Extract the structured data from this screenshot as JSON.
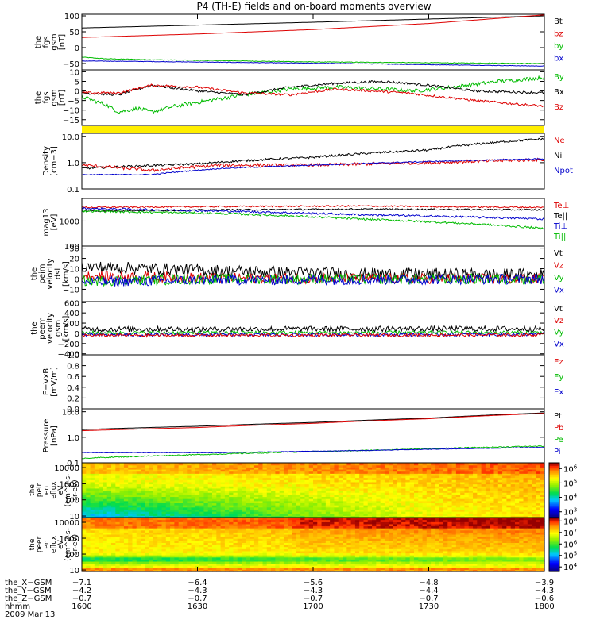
{
  "title": "P4 (TH-E) fields and on-board moments overview",
  "chart_data": {
    "type": "line",
    "time_axis": {
      "ticks": [
        "1600",
        "1630",
        "1700",
        "1730",
        "1800"
      ],
      "range": [
        "16:00",
        "18:00"
      ]
    },
    "panels": [
      {
        "ylabel": [
          "the",
          "fgs",
          "gsm",
          "[nT]"
        ],
        "scale": "linear",
        "ylim": [
          -70,
          105
        ],
        "ticks": [
          {
            "v": 100,
            "t": "100"
          },
          {
            "v": 50,
            "t": "50"
          },
          {
            "v": 0,
            "t": "0"
          },
          {
            "v": -50,
            "t": "−50"
          }
        ],
        "legend": [
          {
            "name": "Bt",
            "color": "#000000"
          },
          {
            "name": "bz",
            "color": "#dd0000"
          },
          {
            "name": "by",
            "color": "#00bb00"
          },
          {
            "name": "bx",
            "color": "#0000cc"
          }
        ],
        "series": [
          {
            "name": "Bt",
            "color": "#000000",
            "noise": 0,
            "t": [
              0,
              0.25,
              0.5,
              0.75,
              1
            ],
            "v": [
              62,
              71,
              80,
              90,
              100
            ]
          },
          {
            "name": "bz",
            "color": "#dd0000",
            "noise": 0,
            "t": [
              0,
              0.25,
              0.5,
              0.75,
              1
            ],
            "v": [
              32,
              43,
              57,
              76,
              103
            ]
          },
          {
            "name": "by",
            "color": "#00bb00",
            "noise": 1,
            "t": [
              0,
              0.05,
              0.15,
              0.5,
              1
            ],
            "v": [
              -30,
              -35,
              -38,
              -45,
              -50
            ]
          },
          {
            "name": "bx",
            "color": "#0000cc",
            "noise": 0.8,
            "t": [
              0,
              0.1,
              0.5,
              1
            ],
            "v": [
              -42,
              -43,
              -49,
              -58
            ]
          }
        ]
      },
      {
        "ylabel": [
          "the",
          "fgs",
          "gsm",
          "[nT]"
        ],
        "scale": "linear",
        "ylim": [
          -18,
          11
        ],
        "ticks": [
          {
            "v": 10,
            "t": "10"
          },
          {
            "v": 5,
            "t": "5"
          },
          {
            "v": 0,
            "t": "0"
          },
          {
            "v": -5,
            "t": "−5"
          },
          {
            "v": -10,
            "t": "−10"
          },
          {
            "v": -15,
            "t": "−15"
          }
        ],
        "legend": [
          {
            "name": "By",
            "color": "#00bb00"
          },
          {
            "name": "Bx",
            "color": "#000000"
          },
          {
            "name": "Bz",
            "color": "#dd0000"
          }
        ],
        "series": [
          {
            "name": "By",
            "color": "#00bb00",
            "noise": 1,
            "t": [
              0,
              0.05,
              0.08,
              0.12,
              0.15,
              0.2,
              0.25,
              0.3,
              0.35,
              0.45,
              0.55,
              0.65,
              0.72,
              0.8,
              0.9,
              1
            ],
            "v": [
              -3,
              -7,
              -11,
              -9,
              -11,
              -8,
              -6,
              -4,
              -2,
              1,
              2,
              1,
              0,
              2,
              5,
              7
            ]
          },
          {
            "name": "Bx",
            "color": "#000000",
            "noise": 0.6,
            "t": [
              0,
              0.08,
              0.15,
              0.25,
              0.35,
              0.45,
              0.55,
              0.65,
              0.75,
              0.85,
              1
            ],
            "v": [
              -1,
              -2,
              3,
              0,
              -2,
              2,
              4,
              5,
              3,
              0,
              -1
            ]
          },
          {
            "name": "Bz",
            "color": "#dd0000",
            "noise": 0.6,
            "t": [
              0,
              0.08,
              0.15,
              0.25,
              0.35,
              0.45,
              0.55,
              0.7,
              0.85,
              1
            ],
            "v": [
              -1,
              -1,
              3,
              2,
              -1,
              -2,
              1,
              -1,
              -5,
              -8
            ]
          }
        ]
      },
      {
        "ylabel": [
          "Density",
          "[cm−3]"
        ],
        "scale": "log",
        "ylim": [
          0.1,
          13
        ],
        "ticks": [
          {
            "v": 10,
            "t": "10.0"
          },
          {
            "v": 1,
            "t": "1.0"
          },
          {
            "v": 0.1,
            "t": "0.1"
          }
        ],
        "legend": [
          {
            "name": "Ne",
            "color": "#dd0000"
          },
          {
            "name": "Ni",
            "color": "#000000"
          },
          {
            "name": "Npot",
            "color": "#0000cc"
          }
        ],
        "series": [
          {
            "name": "Ni",
            "color": "#000000",
            "noise": 0.04,
            "t": [
              0,
              0.25,
              0.5,
              0.75,
              1
            ],
            "v": [
              0.6,
              0.9,
              1.6,
              3.0,
              8.0
            ]
          },
          {
            "name": "Ne",
            "color": "#dd0000",
            "noise": 0.06,
            "t": [
              0,
              0.15,
              0.3,
              0.5,
              0.75,
              1
            ],
            "v": [
              0.8,
              0.5,
              0.8,
              0.8,
              1.0,
              1.3
            ]
          },
          {
            "name": "Npot",
            "color": "#0000cc",
            "noise": 0.02,
            "t": [
              0,
              0.15,
              0.3,
              0.5,
              0.75,
              1
            ],
            "v": [
              0.35,
              0.35,
              0.6,
              0.8,
              1.1,
              1.4
            ]
          }
        ]
      },
      {
        "ylabel": [
          "mag13",
          "[eV]"
        ],
        "scale": "log",
        "ylim": [
          100,
          8000
        ],
        "ticks": [
          {
            "v": 1000,
            "t": "1000"
          },
          {
            "v": 100,
            "t": "100"
          }
        ],
        "legend": [
          {
            "name": "Te⊥",
            "color": "#dd0000"
          },
          {
            "name": "Te||",
            "color": "#000000"
          },
          {
            "name": "Ti⊥",
            "color": "#0000cc"
          },
          {
            "name": "Ti||",
            "color": "#00bb00"
          }
        ],
        "series": [
          {
            "name": "Te⊥",
            "color": "#dd0000",
            "noise": 0.03,
            "t": [
              0,
              0.3,
              0.6,
              1
            ],
            "v": [
              3500,
              3800,
              4000,
              3500
            ]
          },
          {
            "name": "Te||",
            "color": "#000000",
            "noise": 0.03,
            "t": [
              0,
              0.3,
              0.6,
              1
            ],
            "v": [
              2500,
              2800,
              3000,
              2800
            ]
          },
          {
            "name": "Ti⊥",
            "color": "#0000cc",
            "noise": 0.04,
            "t": [
              0,
              0.3,
              0.6,
              1
            ],
            "v": [
              3200,
              2500,
              1800,
              1200
            ]
          },
          {
            "name": "Ti||",
            "color": "#00bb00",
            "noise": 0.04,
            "t": [
              0,
              0.3,
              0.6,
              1
            ],
            "v": [
              2500,
              2000,
              1200,
              500
            ]
          }
        ]
      },
      {
        "ylabel": [
          "the",
          "peim",
          "velocity",
          "dsl",
          "[km/s]"
        ],
        "scale": "linear",
        "ylim": [
          -22,
          32
        ],
        "ticks": [
          {
            "v": 30,
            "t": "30"
          },
          {
            "v": 20,
            "t": "20"
          },
          {
            "v": 10,
            "t": "10"
          },
          {
            "v": 0,
            "t": "0"
          },
          {
            "v": -10,
            "t": "−10"
          }
        ],
        "legend": [
          {
            "name": "Vt",
            "color": "#000000"
          },
          {
            "name": "Vz",
            "color": "#dd0000"
          },
          {
            "name": "Vy",
            "color": "#00bb00"
          },
          {
            "name": "Vx",
            "color": "#0000cc"
          }
        ],
        "series": [
          {
            "name": "Vt",
            "color": "#000000",
            "noise": 6,
            "t": [
              0,
              0.3,
              0.6,
              1
            ],
            "v": [
              12,
              8,
              5,
              4
            ]
          },
          {
            "name": "Vz",
            "color": "#dd0000",
            "noise": 5,
            "t": [
              0,
              0.3,
              1
            ],
            "v": [
              3,
              1,
              0
            ]
          },
          {
            "name": "Vy",
            "color": "#00bb00",
            "noise": 5,
            "t": [
              0,
              0.3,
              1
            ],
            "v": [
              -2,
              0,
              0
            ]
          },
          {
            "name": "Vx",
            "color": "#0000cc",
            "noise": 5,
            "t": [
              0,
              0.3,
              1
            ],
            "v": [
              -3,
              -1,
              0
            ]
          }
        ]
      },
      {
        "ylabel": [
          "the",
          "peem",
          "velocity",
          "gsm",
          "[km/s]"
        ],
        "scale": "linear",
        "ylim": [
          -420,
          620
        ],
        "ticks": [
          {
            "v": 600,
            "t": "600"
          },
          {
            "v": 400,
            "t": "400"
          },
          {
            "v": 200,
            "t": "200"
          },
          {
            "v": 0,
            "t": "0"
          },
          {
            "v": -200,
            "t": "−200"
          },
          {
            "v": -400,
            "t": "−400"
          }
        ],
        "legend": [
          {
            "name": "Vt",
            "color": "#000000"
          },
          {
            "name": "Vz",
            "color": "#dd0000"
          },
          {
            "name": "Vy",
            "color": "#00bb00"
          },
          {
            "name": "Vx",
            "color": "#0000cc"
          }
        ],
        "series": [
          {
            "name": "Vt",
            "color": "#000000",
            "noise": 55,
            "t": [
              0,
              1
            ],
            "v": [
              80,
              90
            ]
          },
          {
            "name": "Vy",
            "color": "#00bb00",
            "noise": 35,
            "t": [
              0,
              1
            ],
            "v": [
              10,
              15
            ]
          },
          {
            "name": "Vx",
            "color": "#0000cc",
            "noise": 35,
            "t": [
              0,
              1
            ],
            "v": [
              -30,
              -20
            ]
          },
          {
            "name": "Vz",
            "color": "#dd0000",
            "noise": 30,
            "t": [
              0,
              1
            ],
            "v": [
              -40,
              -30
            ]
          }
        ]
      },
      {
        "ylabel": [
          "E−VxB",
          "[mV/m]"
        ],
        "scale": "linear",
        "ylim": [
          0,
          1
        ],
        "ticks": [
          {
            "v": 1,
            "t": "1.0"
          },
          {
            "v": 0.8,
            "t": "0.8"
          },
          {
            "v": 0.6,
            "t": "0.6"
          },
          {
            "v": 0.4,
            "t": "0.4"
          },
          {
            "v": 0.2,
            "t": "0.2"
          },
          {
            "v": 0,
            "t": "0.0"
          }
        ],
        "legend": [
          {
            "name": "Ez",
            "color": "#dd0000"
          },
          {
            "name": "Ey",
            "color": "#00bb00"
          },
          {
            "name": "Ex",
            "color": "#0000cc"
          }
        ],
        "series": []
      },
      {
        "ylabel": [
          "Pressure",
          "[nPa]"
        ],
        "scale": "log",
        "ylim": [
          0.1,
          13
        ],
        "ticks": [
          {
            "v": 10,
            "t": "10.0"
          },
          {
            "v": 1,
            "t": "1.0"
          },
          {
            "v": 0.1,
            "t": "0.1"
          }
        ],
        "legend": [
          {
            "name": "Pt",
            "color": "#000000"
          },
          {
            "name": "Pb",
            "color": "#dd0000"
          },
          {
            "name": "Pe",
            "color": "#00bb00"
          },
          {
            "name": "Pi",
            "color": "#0000cc"
          }
        ],
        "series": [
          {
            "name": "Pt",
            "color": "#000000",
            "noise": 0,
            "t": [
              0,
              0.25,
              0.5,
              0.75,
              1
            ],
            "v": [
              2.0,
              2.7,
              3.8,
              5.6,
              9.0
            ]
          },
          {
            "name": "Pb",
            "color": "#dd0000",
            "noise": 0,
            "t": [
              0,
              0.25,
              0.5,
              0.75,
              1
            ],
            "v": [
              1.8,
              2.4,
              3.5,
              5.3,
              8.6
            ]
          },
          {
            "name": "Pe",
            "color": "#00bb00",
            "noise": 0.02,
            "t": [
              0,
              0.3,
              0.6,
              1
            ],
            "v": [
              0.15,
              0.22,
              0.3,
              0.45
            ]
          },
          {
            "name": "Pi",
            "color": "#0000cc",
            "noise": 0.01,
            "t": [
              0,
              0.3,
              0.6,
              1
            ],
            "v": [
              0.25,
              0.25,
              0.3,
              0.4
            ]
          }
        ]
      }
    ],
    "spectrograms": [
      {
        "ylabel": [
          "the",
          "peir",
          "en",
          "eflux",
          "eV",
          "(cm^2-s-",
          "sr-eV)"
        ],
        "ylim": [
          8,
          20000
        ],
        "ticks": [
          {
            "v": 10000,
            "t": "10000"
          },
          {
            "v": 1000,
            "t": "1000"
          },
          {
            "v": 100,
            "t": "100"
          },
          {
            "v": 10,
            "t": "10"
          }
        ],
        "colorbar_ticks": [
          {
            "e": 6,
            "t": "10^6"
          },
          {
            "e": 5,
            "t": "10^5"
          },
          {
            "e": 4,
            "t": "10^4"
          },
          {
            "e": 3,
            "t": "10^3"
          }
        ],
        "clim_exp": [
          2.6,
          6.4
        ]
      },
      {
        "ylabel": [
          "the",
          "peer",
          "en",
          "eflux",
          "eV",
          "(cm^2-s-",
          "sr-eV)"
        ],
        "ylim": [
          8,
          20000
        ],
        "ticks": [
          {
            "v": 10000,
            "t": "10000"
          },
          {
            "v": 1000,
            "t": "1000"
          },
          {
            "v": 100,
            "t": "100"
          },
          {
            "v": 10,
            "t": "10"
          }
        ],
        "colorbar_ticks": [
          {
            "e": 8,
            "t": "10^8"
          },
          {
            "e": 7,
            "t": "10^7"
          },
          {
            "e": 6,
            "t": "10^6"
          },
          {
            "e": 5,
            "t": "10^5"
          },
          {
            "e": 4,
            "t": "10^4"
          }
        ],
        "clim_exp": [
          3.6,
          8.3
        ]
      }
    ],
    "yellow_band_color": "#ffee00",
    "footer": {
      "rows": [
        {
          "label": "the_X−GSM",
          "values": [
            "−7.1",
            "−6.4",
            "−5.6",
            "−4.8",
            "−3.9"
          ]
        },
        {
          "label": "the_Y−GSM",
          "values": [
            "−4.2",
            "−4.3",
            "−4.3",
            "−4.4",
            "−4.3"
          ]
        },
        {
          "label": "the_Z−GSM",
          "values": [
            "−0.7",
            "−0.7",
            "−0.7",
            "−0.7",
            "−0.6"
          ]
        },
        {
          "label": "hhmm",
          "values": [
            "1600",
            "1630",
            "1700",
            "1730",
            "1800"
          ]
        }
      ],
      "date": "2009 Mar 13"
    }
  }
}
